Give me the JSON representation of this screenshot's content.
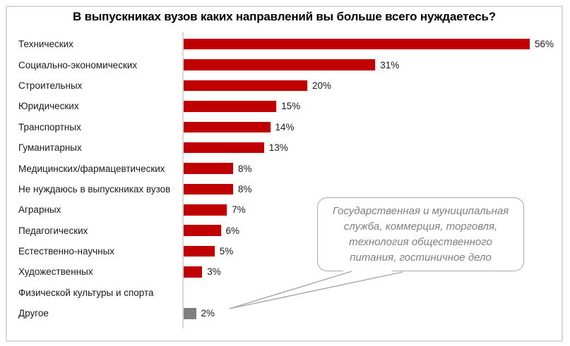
{
  "title": "В выпускниках вузов каких направлений вы больше всего нуждаетесь?",
  "chart_data": {
    "type": "bar",
    "orientation": "horizontal",
    "title": "В выпускниках вузов каких направлений вы больше всего нуждаетесь?",
    "categories": [
      "Технических",
      "Социально-экономических",
      "Строительных",
      "Юридических",
      "Транспортных",
      "Гуманитарных",
      "Медицинских/фармацевтических",
      "Не нуждаюсь в выпускниках вузов",
      "Аграрных",
      "Педагогических",
      "Естественно-научных",
      "Художественных",
      "Физической культуры и спорта",
      "Другое"
    ],
    "values": [
      56,
      31,
      20,
      15,
      14,
      13,
      8,
      8,
      7,
      6,
      5,
      3,
      0,
      2
    ],
    "data_labels": [
      "56%",
      "31%",
      "20%",
      "15%",
      "14%",
      "13%",
      "8%",
      "8%",
      "7%",
      "6%",
      "5%",
      "3%",
      "",
      "2%"
    ],
    "bar_colors": [
      "#C00000",
      "#C00000",
      "#C00000",
      "#C00000",
      "#C00000",
      "#C00000",
      "#C00000",
      "#C00000",
      "#C00000",
      "#C00000",
      "#C00000",
      "#C00000",
      "#C00000",
      "#808080"
    ],
    "xlim": [
      0,
      60
    ],
    "grid": false,
    "legend": false,
    "axis_line_color": "#D9D9D9",
    "value_unit": "%"
  },
  "callout": {
    "text": "Государственная и муниципальная служба, коммерция, торговля, технология общественного питания, гостиничное дело",
    "lines": [
      "Государственная и муниципальная",
      "служба, коммерция, торговля,",
      "технология общественного",
      "питания, гостиничное дело"
    ],
    "points_to": "Другое",
    "border_color": "#A6A6A6",
    "text_color": "#7F7F7F"
  }
}
